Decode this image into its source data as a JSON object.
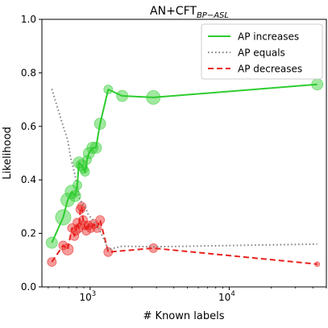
{
  "chart_data": {
    "type": "line",
    "title_main": "AN+CFT",
    "title_sub": "BP−ASL",
    "xlabel": "# Known labels",
    "ylabel": "Likelihood",
    "x_scale": "log",
    "xlim": [
      450,
      50000
    ],
    "ylim": [
      0.0,
      1.0
    ],
    "x_ticks": [
      {
        "value": 1000,
        "base": "10",
        "exp": "3"
      },
      {
        "value": 10000,
        "base": "10",
        "exp": "4"
      }
    ],
    "y_ticks": [
      {
        "value": 0.0,
        "label": "0.0"
      },
      {
        "value": 0.2,
        "label": "0.2"
      },
      {
        "value": 0.4,
        "label": "0.4"
      },
      {
        "value": 0.6,
        "label": "0.6"
      },
      {
        "value": 0.8,
        "label": "0.8"
      },
      {
        "value": 1.0,
        "label": "1.0"
      }
    ],
    "grid": false,
    "legend_position": "top-right",
    "series": [
      {
        "name": "AP increases",
        "color": "#2ecc2e",
        "style": "solid",
        "markers": true,
        "points": [
          {
            "x": 530,
            "y": 0.165,
            "size": 2
          },
          {
            "x": 640,
            "y": 0.26,
            "size": 4
          },
          {
            "x": 690,
            "y": 0.325,
            "size": 3
          },
          {
            "x": 740,
            "y": 0.355,
            "size": 3
          },
          {
            "x": 780,
            "y": 0.34,
            "size": 2
          },
          {
            "x": 810,
            "y": 0.38,
            "size": 1
          },
          {
            "x": 830,
            "y": 0.465,
            "size": 2
          },
          {
            "x": 870,
            "y": 0.455,
            "size": 2
          },
          {
            "x": 900,
            "y": 0.44,
            "size": 1
          },
          {
            "x": 920,
            "y": 0.43,
            "size": 1
          },
          {
            "x": 950,
            "y": 0.475,
            "size": 1
          },
          {
            "x": 980,
            "y": 0.5,
            "size": 2
          },
          {
            "x": 1040,
            "y": 0.52,
            "size": 2
          },
          {
            "x": 1100,
            "y": 0.52,
            "size": 2
          },
          {
            "x": 1180,
            "y": 0.61,
            "size": 2
          },
          {
            "x": 1350,
            "y": 0.738,
            "size": 1
          },
          {
            "x": 1700,
            "y": 0.714,
            "size": 2
          },
          {
            "x": 2850,
            "y": 0.708,
            "size": 3
          },
          {
            "x": 43000,
            "y": 0.757,
            "size": 2
          }
        ]
      },
      {
        "name": "AP equals",
        "color": "#808080",
        "style": "dotted",
        "markers": false,
        "points": [
          {
            "x": 530,
            "y": 0.74
          },
          {
            "x": 590,
            "y": 0.66
          },
          {
            "x": 640,
            "y": 0.6
          },
          {
            "x": 690,
            "y": 0.55
          },
          {
            "x": 720,
            "y": 0.49
          },
          {
            "x": 760,
            "y": 0.44
          },
          {
            "x": 800,
            "y": 0.39
          },
          {
            "x": 840,
            "y": 0.33
          },
          {
            "x": 880,
            "y": 0.31
          },
          {
            "x": 920,
            "y": 0.3
          },
          {
            "x": 970,
            "y": 0.27
          },
          {
            "x": 1050,
            "y": 0.25
          },
          {
            "x": 1150,
            "y": 0.22
          },
          {
            "x": 1250,
            "y": 0.18
          },
          {
            "x": 1350,
            "y": 0.14
          },
          {
            "x": 1700,
            "y": 0.152
          },
          {
            "x": 2850,
            "y": 0.15
          },
          {
            "x": 43000,
            "y": 0.16
          }
        ]
      },
      {
        "name": "AP decreases",
        "color": "#e8221e",
        "style": "dashed",
        "markers": true,
        "points": [
          {
            "x": 530,
            "y": 0.093,
            "size": 1
          },
          {
            "x": 640,
            "y": 0.155,
            "size": 1
          },
          {
            "x": 690,
            "y": 0.14,
            "size": 2
          },
          {
            "x": 740,
            "y": 0.22,
            "size": 1
          },
          {
            "x": 770,
            "y": 0.19,
            "size": 1
          },
          {
            "x": 790,
            "y": 0.21,
            "size": 1
          },
          {
            "x": 810,
            "y": 0.24,
            "size": 1
          },
          {
            "x": 830,
            "y": 0.22,
            "size": 1
          },
          {
            "x": 850,
            "y": 0.29,
            "size": 1
          },
          {
            "x": 870,
            "y": 0.3,
            "size": 1
          },
          {
            "x": 890,
            "y": 0.25,
            "size": 1
          },
          {
            "x": 910,
            "y": 0.23,
            "size": 1
          },
          {
            "x": 940,
            "y": 0.21,
            "size": 1
          },
          {
            "x": 970,
            "y": 0.23,
            "size": 1
          },
          {
            "x": 1010,
            "y": 0.22,
            "size": 1
          },
          {
            "x": 1060,
            "y": 0.235,
            "size": 1
          },
          {
            "x": 1120,
            "y": 0.22,
            "size": 1
          },
          {
            "x": 1180,
            "y": 0.25,
            "size": 1
          },
          {
            "x": 1350,
            "y": 0.13,
            "size": 1
          },
          {
            "x": 2850,
            "y": 0.145,
            "size": 1
          },
          {
            "x": 43000,
            "y": 0.085,
            "size": 0
          }
        ]
      }
    ]
  }
}
